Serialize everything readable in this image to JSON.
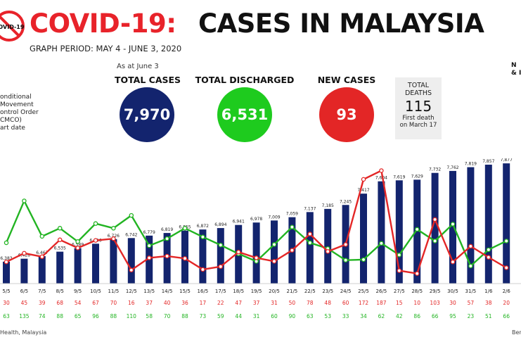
{
  "header": {
    "logo_text": "COVID-19",
    "title_prefix": "COVID-19:",
    "title_main": "CASES IN MALAYSIA",
    "period": "GRAPH PERIOD: MAY 4 - JUNE 3, 2020"
  },
  "stats": {
    "as_at": "As at June 3",
    "total_cases": {
      "label": "TOTAL CASES",
      "value": "7,970",
      "color": "#13246e"
    },
    "total_discharged": {
      "label": "TOTAL DISCHARGED",
      "value": "6,531",
      "color": "#1ecb1e"
    },
    "new_cases": {
      "label": "NEW CASES",
      "value": "93",
      "color": "#e32626"
    },
    "deaths": {
      "label_line1": "TOTAL",
      "label_line2": "DEATHS",
      "value": "115",
      "note_line1": "First death",
      "note_line2": "on March 17"
    }
  },
  "notes": {
    "mco_lines": [
      "onditional",
      "Movement",
      "ontrol Order",
      "CMCO)",
      "art date"
    ],
    "right_lines": [
      "N",
      "& I"
    ],
    "source": "Health, Malaysia",
    "credit": "Ber"
  },
  "colors": {
    "bar": "#13246e",
    "new_cases": "#e32626",
    "discharged": "#22b422",
    "accent": "#e8232a"
  },
  "chart_data": {
    "type": "bar",
    "categories": [
      "5/5",
      "6/5",
      "7/5",
      "8/5",
      "9/5",
      "10/5",
      "11/5",
      "12/5",
      "13/5",
      "14/5",
      "15/5",
      "16/5",
      "17/5",
      "18/5",
      "19/5",
      "20/5",
      "21/5",
      "22/5",
      "23/5",
      "24/5",
      "25/5",
      "26/5",
      "27/5",
      "28/5",
      "29/5",
      "30/5",
      "31/5",
      "1/6",
      "2/6"
    ],
    "series": [
      {
        "name": "Total cases",
        "values": [
          6383,
          6428,
          6467,
          6535,
          6589,
          6656,
          6726,
          6742,
          6779,
          6819,
          6855,
          6872,
          6894,
          6941,
          6978,
          7009,
          7059,
          7137,
          7185,
          7245,
          7417,
          7604,
          7619,
          7629,
          7732,
          7762,
          7819,
          7857,
          7877
        ]
      },
      {
        "name": "New cases",
        "values": [
          30,
          45,
          39,
          68,
          54,
          67,
          70,
          16,
          37,
          40,
          36,
          17,
          22,
          47,
          37,
          31,
          50,
          78,
          48,
          60,
          172,
          187,
          15,
          10,
          103,
          30,
          57,
          38,
          20
        ]
      },
      {
        "name": "Discharged",
        "values": [
          63,
          135,
          74,
          88,
          65,
          96,
          88,
          110,
          58,
          70,
          88,
          73,
          59,
          44,
          31,
          60,
          90,
          63,
          53,
          33,
          34,
          62,
          42,
          86,
          66,
          95,
          23,
          51,
          66
        ]
      }
    ],
    "bar_labels": [
      "6,383",
      "6,428",
      "6,467",
      "6,535",
      "6,589",
      "6,656",
      "6,726",
      "6,742",
      "6,779",
      "6,819",
      "6,855",
      "6,872",
      "6,894",
      "6,941",
      "6,978",
      "7,009",
      "7,059",
      "7,137",
      "7,185",
      "7,245",
      "7,417",
      "7,604",
      "7,619",
      "7,629",
      "7,732",
      "7,762",
      "7,819",
      "7,857",
      "7,877"
    ],
    "ylim": [
      6050,
      7900
    ],
    "line_ylim": [
      0,
      190
    ],
    "grid": false,
    "legend": "none"
  }
}
